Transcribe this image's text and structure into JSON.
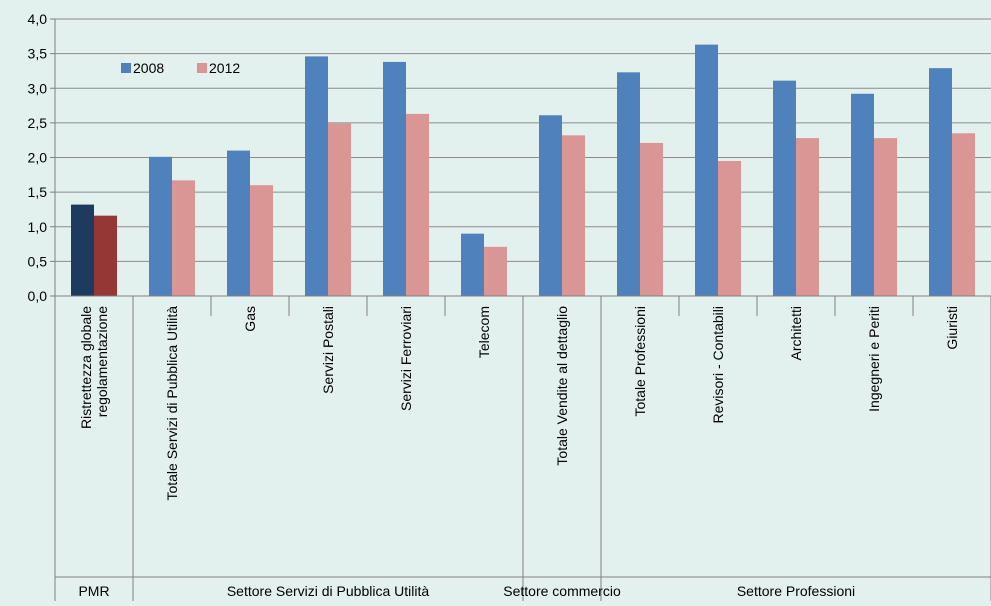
{
  "chart_data": {
    "type": "bar",
    "categories": [
      "Ristrettezza globale regolamentazione",
      "Totale Servizi di Pubblica Utilità",
      "Gas",
      "Servizi Postali",
      "Servizi Ferroviari",
      "Telecom",
      "Totale Vendite al dettaglio",
      "Totale Professioni",
      "Revisori - Contabili",
      "Architetti",
      "Ingegneri e Periti",
      "Giuristi"
    ],
    "category_lines": [
      [
        "Ristrettezza globale",
        "regolamentazione"
      ],
      [
        "Totale Servizi di Pubblica Utilità"
      ],
      [
        "Gas"
      ],
      [
        "Servizi Postali"
      ],
      [
        "Servizi Ferroviari"
      ],
      [
        "Telecom"
      ],
      [
        "Totale Vendite al dettaglio"
      ],
      [
        "Totale Professioni"
      ],
      [
        "Revisori - Contabili"
      ],
      [
        "Architetti"
      ],
      [
        "Ingegneri e Periti"
      ],
      [
        "Giuristi"
      ]
    ],
    "series": [
      {
        "name": "2008",
        "color": "#4f81bd",
        "highlight_color": "#1f3a5f",
        "values": [
          1.32,
          2.01,
          2.1,
          3.46,
          3.38,
          0.9,
          2.61,
          3.23,
          3.63,
          3.11,
          2.92,
          3.29
        ]
      },
      {
        "name": "2012",
        "color": "#d99694",
        "highlight_color": "#953735",
        "values": [
          1.16,
          1.67,
          1.6,
          2.49,
          2.63,
          0.71,
          2.32,
          2.21,
          1.95,
          2.28,
          2.28,
          2.35
        ]
      }
    ],
    "highlight_index": 0,
    "groups": [
      {
        "label": "PMR",
        "start": 0,
        "end": 0
      },
      {
        "label": "Settore Servizi di Pubblica Utilità",
        "start": 1,
        "end": 5
      },
      {
        "label": "Settore commercio",
        "start": 6,
        "end": 6
      },
      {
        "label": "Settore Professioni",
        "start": 7,
        "end": 11
      }
    ],
    "y_ticks": [
      "0,0",
      "0,5",
      "1,0",
      "1,5",
      "2,0",
      "2,5",
      "3,0",
      "3,5",
      "4,0"
    ],
    "ylim": [
      0,
      4
    ],
    "grid": true,
    "legend_position": "top-left",
    "title": "",
    "xlabel": "",
    "ylabel": ""
  }
}
